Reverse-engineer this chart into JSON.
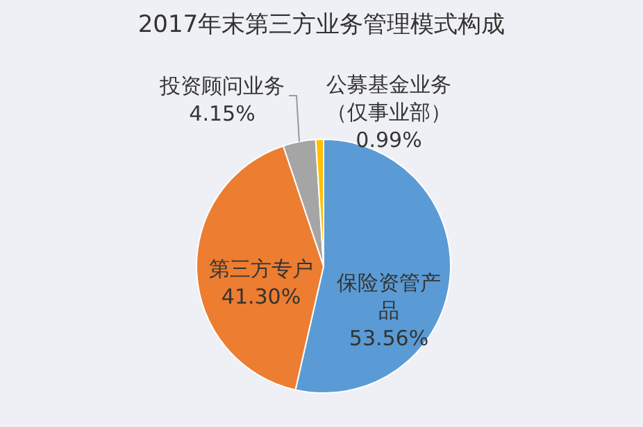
{
  "chart_data": {
    "type": "pie",
    "title": "2017年末第三方业务管理模式构成",
    "categories": [
      "保险资管产品",
      "第三方专户",
      "投资顾问业务",
      "公募基金业务（仅事业部）"
    ],
    "values": [
      53.56,
      41.3,
      4.15,
      0.99
    ],
    "value_labels": [
      "53.56%",
      "41.30%",
      "4.15%",
      "0.99%"
    ],
    "colors": [
      "#5b9bd5",
      "#ed7d31",
      "#a5a5a5",
      "#ffc000"
    ],
    "legend": false
  }
}
